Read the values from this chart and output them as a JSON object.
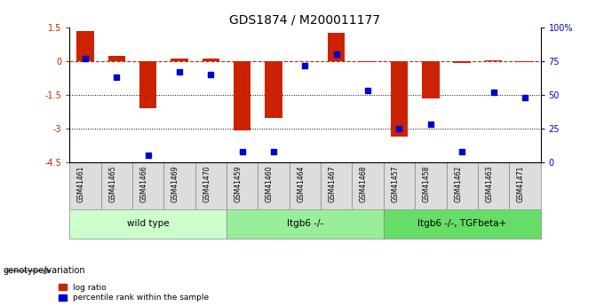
{
  "title": "GDS1874 / M200011177",
  "samples": [
    "GSM41461",
    "GSM41465",
    "GSM41466",
    "GSM41469",
    "GSM41470",
    "GSM41459",
    "GSM41460",
    "GSM41464",
    "GSM41467",
    "GSM41468",
    "GSM41457",
    "GSM41458",
    "GSM41462",
    "GSM41463",
    "GSM41471"
  ],
  "log_ratio": [
    1.35,
    0.22,
    -2.1,
    0.13,
    0.1,
    -3.1,
    -2.55,
    -0.02,
    1.25,
    -0.05,
    -3.35,
    -1.65,
    -0.08,
    0.05,
    -0.05
  ],
  "percentile_rank": [
    77,
    63,
    5,
    67,
    65,
    8,
    8,
    72,
    80,
    53,
    25,
    28,
    8,
    52,
    48
  ],
  "groups": [
    {
      "label": "wild type",
      "start": 0,
      "end": 5,
      "color": "#ccffcc"
    },
    {
      "label": "Itgb6 -/-",
      "start": 5,
      "end": 10,
      "color": "#99ee99"
    },
    {
      "label": "Itgb6 -/-, TGFbeta+",
      "start": 10,
      "end": 15,
      "color": "#66dd66"
    }
  ],
  "ylim_left": [
    -4.5,
    1.5
  ],
  "ylim_right": [
    0,
    100
  ],
  "bar_color": "#cc2200",
  "dot_color": "#0000cc",
  "hline_color": "#cc2200",
  "dotted_lines": [
    -1.5,
    -3.0
  ],
  "right_yticks": [
    0,
    25,
    50,
    75,
    100
  ],
  "right_yticklabels": [
    "0",
    "25",
    "50",
    "75",
    "100%"
  ],
  "left_yticks": [
    1.5,
    0,
    -1.5,
    -3.0,
    -4.5
  ],
  "left_yticklabels": [
    "1.5",
    "0",
    "-1.5",
    "-3",
    "-4.5"
  ],
  "background_color": "#ffffff",
  "bar_width": 0.55,
  "dot_size": 22,
  "legend_bar_label": "log ratio",
  "legend_dot_label": "percentile rank within the sample",
  "genotype_label": "genotype/variation",
  "title_fontsize": 10,
  "axis_fontsize": 7,
  "label_fontsize": 7.5,
  "sample_fontsize": 5.5
}
